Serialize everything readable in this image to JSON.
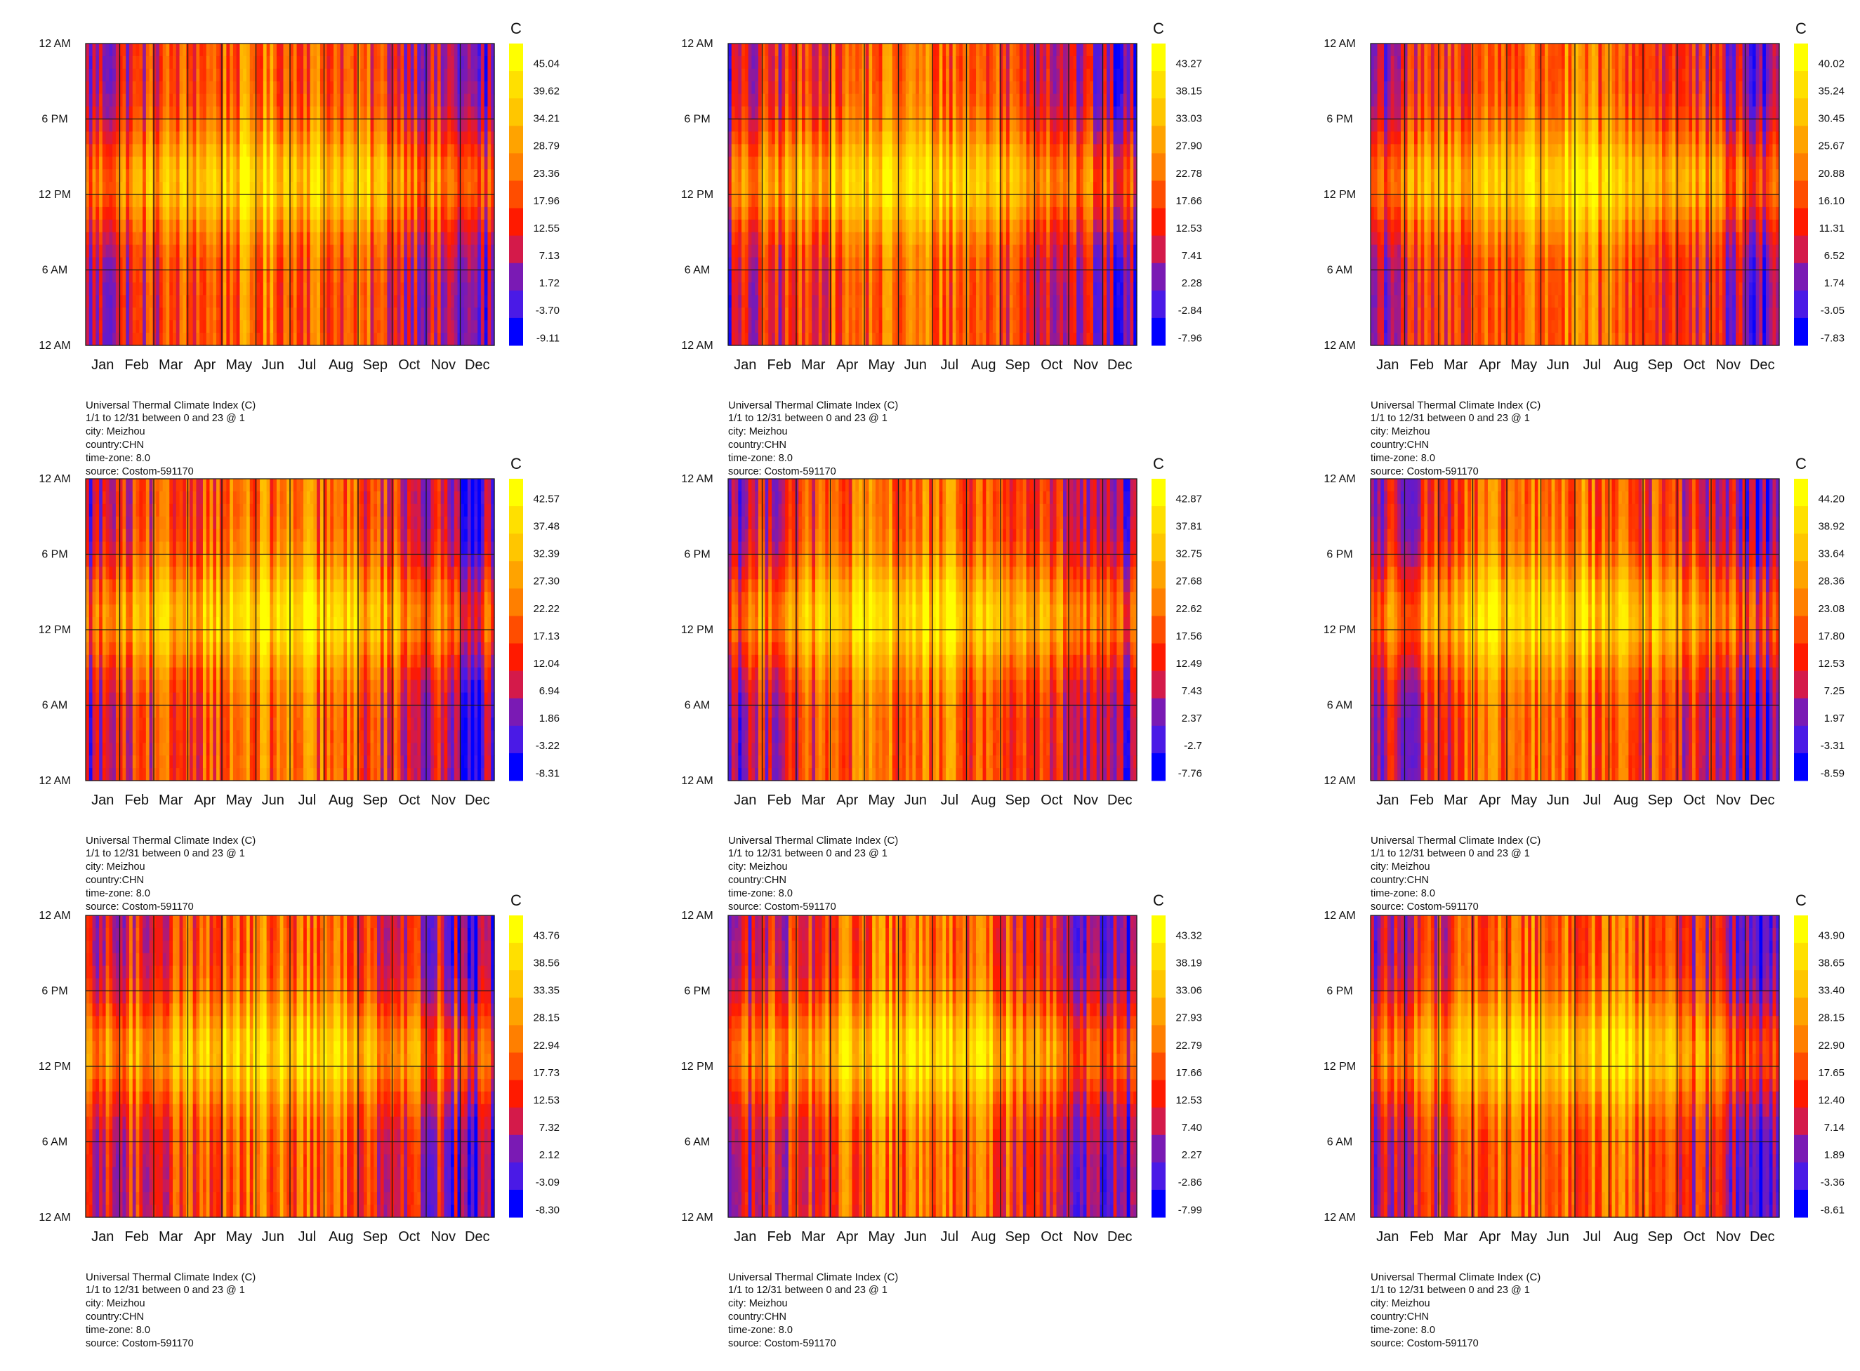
{
  "chart_data": [
    {
      "type": "heatmap",
      "unit": "C",
      "y_labels": [
        "12 AM",
        "6 PM",
        "12 PM",
        "6 AM",
        "12 AM"
      ],
      "x_labels": [
        "Jan",
        "Feb",
        "Mar",
        "Apr",
        "May",
        "Jun",
        "Jul",
        "Aug",
        "Sep",
        "Oct",
        "Nov",
        "Dec"
      ],
      "legend_values": [
        "45.04",
        "39.62",
        "34.21",
        "28.79",
        "23.36",
        "17.96",
        "12.55",
        "7.13",
        "1.72",
        "-3.70",
        "-9.11"
      ],
      "caption": [
        "Universal Thermal Climate Index (C)",
        "1/1 to 12/31 between 0 and 23 @ 1",
        "city: Meizhou",
        "country:CHN",
        "time-zone: 8.0",
        "source: Costom-591170"
      ]
    },
    {
      "type": "heatmap",
      "unit": "C",
      "y_labels": [
        "12 AM",
        "6 PM",
        "12 PM",
        "6 AM",
        "12 AM"
      ],
      "x_labels": [
        "Jan",
        "Feb",
        "Mar",
        "Apr",
        "May",
        "Jun",
        "Jul",
        "Aug",
        "Sep",
        "Oct",
        "Nov",
        "Dec"
      ],
      "legend_values": [
        "43.27",
        "38.15",
        "33.03",
        "27.90",
        "22.78",
        "17.66",
        "12.53",
        "7.41",
        "2.28",
        "-2.84",
        "-7.96"
      ],
      "caption": [
        "Universal Thermal Climate Index (C)",
        "1/1 to 12/31 between 0 and 23 @ 1",
        "city: Meizhou",
        "country:CHN",
        "time-zone: 8.0",
        "source: Costom-591170"
      ]
    },
    {
      "type": "heatmap",
      "unit": "C",
      "y_labels": [
        "12 AM",
        "6 PM",
        "12 PM",
        "6 AM",
        "12 AM"
      ],
      "x_labels": [
        "Jan",
        "Feb",
        "Mar",
        "Apr",
        "May",
        "Jun",
        "Jul",
        "Aug",
        "Sep",
        "Oct",
        "Nov",
        "Dec"
      ],
      "legend_values": [
        "40.02",
        "35.24",
        "30.45",
        "25.67",
        "20.88",
        "16.10",
        "11.31",
        "6.52",
        "1.74",
        "-3.05",
        "-7.83"
      ],
      "caption": [
        "Universal Thermal Climate Index (C)",
        "1/1 to 12/31 between 0 and 23 @ 1",
        "city: Meizhou",
        "country:CHN",
        "time-zone: 8.0",
        "source: Costom-591170"
      ]
    },
    {
      "type": "heatmap",
      "unit": "C",
      "y_labels": [
        "12 AM",
        "6 PM",
        "12 PM",
        "6 AM",
        "12 AM"
      ],
      "x_labels": [
        "Jan",
        "Feb",
        "Mar",
        "Apr",
        "May",
        "Jun",
        "Jul",
        "Aug",
        "Sep",
        "Oct",
        "Nov",
        "Dec"
      ],
      "legend_values": [
        "42.57",
        "37.48",
        "32.39",
        "27.30",
        "22.22",
        "17.13",
        "12.04",
        "6.94",
        "1.86",
        "-3.22",
        "-8.31"
      ],
      "caption": [
        "Universal Thermal Climate Index (C)",
        "1/1 to 12/31 between 0 and 23 @ 1",
        "city: Meizhou",
        "country:CHN",
        "time-zone: 8.0",
        "source: Costom-591170"
      ]
    },
    {
      "type": "heatmap",
      "unit": "C",
      "y_labels": [
        "12 AM",
        "6 PM",
        "12 PM",
        "6 AM",
        "12 AM"
      ],
      "x_labels": [
        "Jan",
        "Feb",
        "Mar",
        "Apr",
        "May",
        "Jun",
        "Jul",
        "Aug",
        "Sep",
        "Oct",
        "Nov",
        "Dec"
      ],
      "legend_values": [
        "42.87",
        "37.81",
        "32.75",
        "27.68",
        "22.62",
        "17.56",
        "12.49",
        "7.43",
        "2.37",
        "-2.7",
        "-7.76"
      ],
      "caption": [
        "Universal Thermal Climate Index (C)",
        "1/1 to 12/31 between 0 and 23 @ 1",
        "city: Meizhou",
        "country:CHN",
        "time-zone: 8.0",
        "source: Costom-591170"
      ]
    },
    {
      "type": "heatmap",
      "unit": "C",
      "y_labels": [
        "12 AM",
        "6 PM",
        "12 PM",
        "6 AM",
        "12 AM"
      ],
      "x_labels": [
        "Jan",
        "Feb",
        "Mar",
        "Apr",
        "May",
        "Jun",
        "Jul",
        "Aug",
        "Sep",
        "Oct",
        "Nov",
        "Dec"
      ],
      "legend_values": [
        "44.20",
        "38.92",
        "33.64",
        "28.36",
        "23.08",
        "17.80",
        "12.53",
        "7.25",
        "1.97",
        "-3.31",
        "-8.59"
      ],
      "caption": [
        "Universal Thermal Climate Index (C)",
        "1/1 to 12/31 between 0 and 23 @ 1",
        "city: Meizhou",
        "country:CHN",
        "time-zone: 8.0",
        "source: Costom-591170"
      ]
    },
    {
      "type": "heatmap",
      "unit": "C",
      "y_labels": [
        "12 AM",
        "6 PM",
        "12 PM",
        "6 AM",
        "12 AM"
      ],
      "x_labels": [
        "Jan",
        "Feb",
        "Mar",
        "Apr",
        "May",
        "Jun",
        "Jul",
        "Aug",
        "Sep",
        "Oct",
        "Nov",
        "Dec"
      ],
      "legend_values": [
        "43.76",
        "38.56",
        "33.35",
        "28.15",
        "22.94",
        "17.73",
        "12.53",
        "7.32",
        "2.12",
        "-3.09",
        "-8.30"
      ],
      "caption": [
        "Universal Thermal Climate Index (C)",
        "1/1 to 12/31 between 0 and 23 @ 1",
        "city: Meizhou",
        "country:CHN",
        "time-zone: 8.0",
        "source: Costom-591170"
      ]
    },
    {
      "type": "heatmap",
      "unit": "C",
      "y_labels": [
        "12 AM",
        "6 PM",
        "12 PM",
        "6 AM",
        "12 AM"
      ],
      "x_labels": [
        "Jan",
        "Feb",
        "Mar",
        "Apr",
        "May",
        "Jun",
        "Jul",
        "Aug",
        "Sep",
        "Oct",
        "Nov",
        "Dec"
      ],
      "legend_values": [
        "43.32",
        "38.19",
        "33.06",
        "27.93",
        "22.79",
        "17.66",
        "12.53",
        "7.40",
        "2.27",
        "-2.86",
        "-7.99"
      ],
      "caption": [
        "Universal Thermal Climate Index (C)",
        "1/1 to 12/31 between 0 and 23 @ 1",
        "city: Meizhou",
        "country:CHN",
        "time-zone: 8.0",
        "source: Costom-591170"
      ]
    },
    {
      "type": "heatmap",
      "unit": "C",
      "y_labels": [
        "12 AM",
        "6 PM",
        "12 PM",
        "6 AM",
        "12 AM"
      ],
      "x_labels": [
        "Jan",
        "Feb",
        "Mar",
        "Apr",
        "May",
        "Jun",
        "Jul",
        "Aug",
        "Sep",
        "Oct",
        "Nov",
        "Dec"
      ],
      "legend_values": [
        "43.90",
        "38.65",
        "33.40",
        "28.15",
        "22.90",
        "17.65",
        "12.40",
        "7.14",
        "1.89",
        "-3.36",
        "-8.61"
      ],
      "caption": [
        "Universal Thermal Climate Index (C)",
        "1/1 to 12/31 between 0 and 23 @ 1",
        "city: Meizhou",
        "country:CHN",
        "time-zone: 8.0",
        "source: Costom-591170"
      ]
    }
  ],
  "palette": [
    "#ffff00",
    "#ffe000",
    "#ffc600",
    "#ffa300",
    "#ff7f00",
    "#ff4d00",
    "#ff1a00",
    "#d41a4a",
    "#7a1ab4",
    "#4a1ae6",
    "#0000ff"
  ],
  "grid_color": "#1a1a1a"
}
